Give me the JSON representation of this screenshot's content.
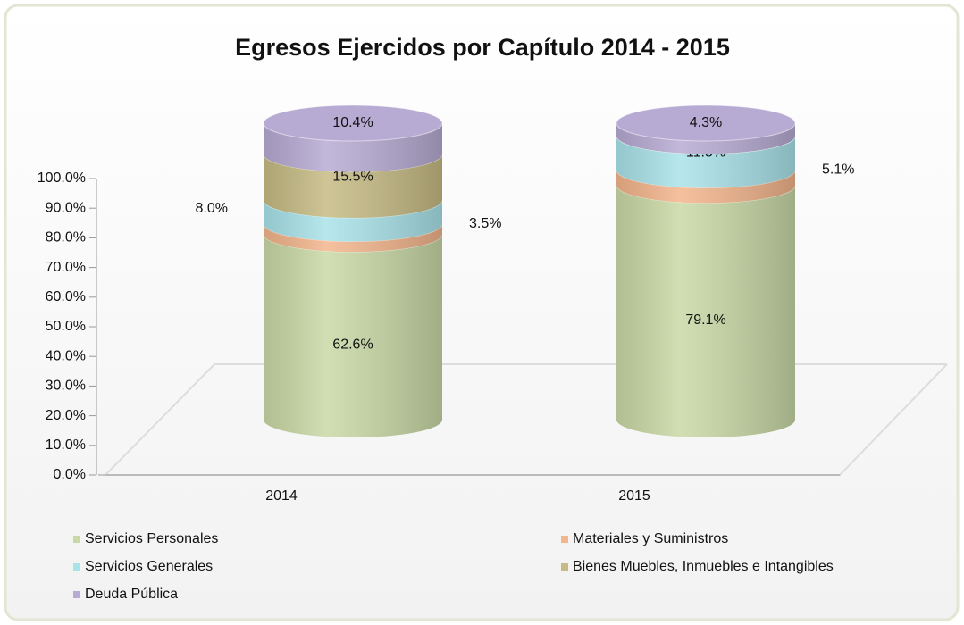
{
  "chart_data": {
    "type": "stacked-cylinder",
    "title": "Egresos  Ejercidos  por Capítulo 2014 - 2015",
    "categories": [
      "2014",
      "2015"
    ],
    "series": [
      {
        "name": "Servicios Personales",
        "color": "#c9d9a6",
        "values": [
          62.6,
          79.1
        ],
        "value_labels": [
          "62.6%",
          "79.1%"
        ]
      },
      {
        "name": "Materiales y Suministros",
        "color": "#f3b58c",
        "values": [
          3.5,
          5.1
        ],
        "value_labels": [
          "3.5%",
          "5.1%"
        ]
      },
      {
        "name": "Servicios Generales",
        "color": "#a9e3ea",
        "values": [
          8.0,
          11.5
        ],
        "value_labels": [
          "8.0%",
          "11.5%"
        ]
      },
      {
        "name": "Bienes Muebles, Inmuebles e Intangibles",
        "color": "#c6bb84",
        "values": [
          15.5,
          0
        ],
        "value_labels": [
          "15.5%",
          null
        ]
      },
      {
        "name": "Deuda Pública",
        "color": "#b7abd3",
        "values": [
          10.4,
          4.3
        ],
        "value_labels": [
          "10.4%",
          "4.3%"
        ]
      }
    ],
    "ylim": [
      0,
      100
    ],
    "yticks": [
      {
        "value": 0,
        "label": "0.0%"
      },
      {
        "value": 10,
        "label": "10.0%"
      },
      {
        "value": 20,
        "label": "20.0%"
      },
      {
        "value": 30,
        "label": "30.0%"
      },
      {
        "value": 40,
        "label": "40.0%"
      },
      {
        "value": 50,
        "label": "50.0%"
      },
      {
        "value": 60,
        "label": "60.0%"
      },
      {
        "value": 70,
        "label": "70.0%"
      },
      {
        "value": 80,
        "label": "80.0%"
      },
      {
        "value": 90,
        "label": "90.0%"
      },
      {
        "value": 100,
        "label": "100.0%"
      }
    ],
    "legend": "bottom"
  }
}
